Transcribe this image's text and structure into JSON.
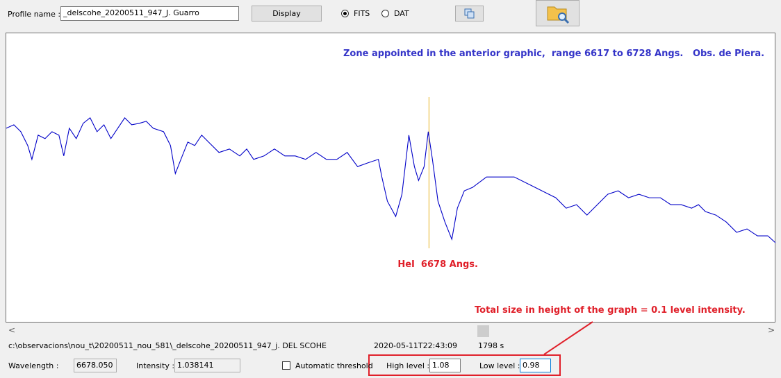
{
  "toolbar": {
    "profile_label": "Profile name :",
    "profile_value": "_delscohe_20200511_947_J. Guarro",
    "display_button": "Display",
    "radio_fits": "FITS",
    "radio_dat": "DAT"
  },
  "chart_data": {
    "type": "line",
    "title": "Zone appointed in the anterior graphic,  range 6617 to 6728 Angs.   Obs. de Piera.",
    "x": [
      6617.0,
      6618.1,
      6619.1,
      6620.1,
      6620.7,
      6621.6,
      6622.6,
      6623.6,
      6624.6,
      6625.3,
      6626.1,
      6627.1,
      6628.1,
      6629.1,
      6630.1,
      6631.1,
      6632.1,
      6633.1,
      6634.1,
      6635.1,
      6636.2,
      6637.2,
      6638.2,
      6639.7,
      6640.7,
      6641.4,
      6642.4,
      6643.2,
      6644.2,
      6645.2,
      6646.2,
      6647.7,
      6649.2,
      6650.7,
      6651.7,
      6652.7,
      6654.2,
      6655.7,
      6657.2,
      6658.7,
      6660.2,
      6661.7,
      6663.2,
      6664.7,
      6666.2,
      6667.7,
      6669.2,
      6670.7,
      6671.2,
      6672.0,
      6673.2,
      6674.1,
      6675.1,
      6675.9,
      6676.5,
      6677.3,
      6677.9,
      6678.5,
      6679.3,
      6680.3,
      6681.3,
      6682.1,
      6683.1,
      6684.3,
      6686.3,
      6688.3,
      6690.3,
      6692.3,
      6694.3,
      6696.3,
      6697.8,
      6699.3,
      6700.8,
      6702.3,
      6703.8,
      6705.3,
      6706.8,
      6708.3,
      6709.8,
      6711.4,
      6712.9,
      6714.4,
      6715.9,
      6716.9,
      6717.9,
      6719.4,
      6720.9,
      6722.4,
      6723.9,
      6725.4,
      6726.9,
      6728.0
    ],
    "values": [
      1.0471,
      1.0483,
      1.0459,
      1.0411,
      1.0363,
      1.0447,
      1.0435,
      1.0459,
      1.0447,
      1.0375,
      1.0471,
      1.0435,
      1.0488,
      1.0507,
      1.0459,
      1.0483,
      1.0435,
      1.0471,
      1.0507,
      1.0483,
      1.0488,
      1.0495,
      1.0471,
      1.0459,
      1.0411,
      1.0314,
      1.0375,
      1.0423,
      1.0411,
      1.0447,
      1.0423,
      1.0387,
      1.0399,
      1.0375,
      1.0399,
      1.0363,
      1.0375,
      1.0399,
      1.0375,
      1.0375,
      1.0363,
      1.0387,
      1.0363,
      1.0363,
      1.0387,
      1.0338,
      1.0351,
      1.0363,
      1.0302,
      1.0218,
      1.0165,
      1.0242,
      1.0447,
      1.0338,
      1.029,
      1.0338,
      1.0459,
      1.0363,
      1.0218,
      1.0146,
      1.0086,
      1.0194,
      1.0254,
      1.0266,
      1.0302,
      1.0302,
      1.0302,
      1.0278,
      1.0254,
      1.023,
      1.0194,
      1.0206,
      1.017,
      1.0206,
      1.0242,
      1.0254,
      1.023,
      1.0242,
      1.023,
      1.023,
      1.0206,
      1.0206,
      1.0194,
      1.0206,
      1.0182,
      1.017,
      1.0146,
      1.011,
      1.0122,
      1.0098,
      1.0098,
      1.0074
    ],
    "color": "#0000c8",
    "xlim": [
      6617,
      6728
    ],
    "ylim": [
      0.98,
      1.08
    ],
    "marker": {
      "x": 6678,
      "label": "HeI  6678 Angs.",
      "color": "#e6b422"
    },
    "annotation": "Total size in height of the graph = 0.1 level intensity."
  },
  "status": {
    "path": "c:\\observacions\\nou_t\\20200511_nou_581\\_delscohe_20200511_947_j. DEL SCOHE",
    "datetime": "2020-05-11T22:43:09",
    "exposure": "1798 s",
    "wavelength_label": "Wavelength :",
    "wavelength_value": "6678.050",
    "intensity_label": "Intensity :",
    "intensity_value": "1.038141",
    "auto_threshold": "Automatic threshold",
    "high_label": "High level :",
    "high_value": "1.08",
    "low_label": "Low level :",
    "low_value": "0.98"
  }
}
